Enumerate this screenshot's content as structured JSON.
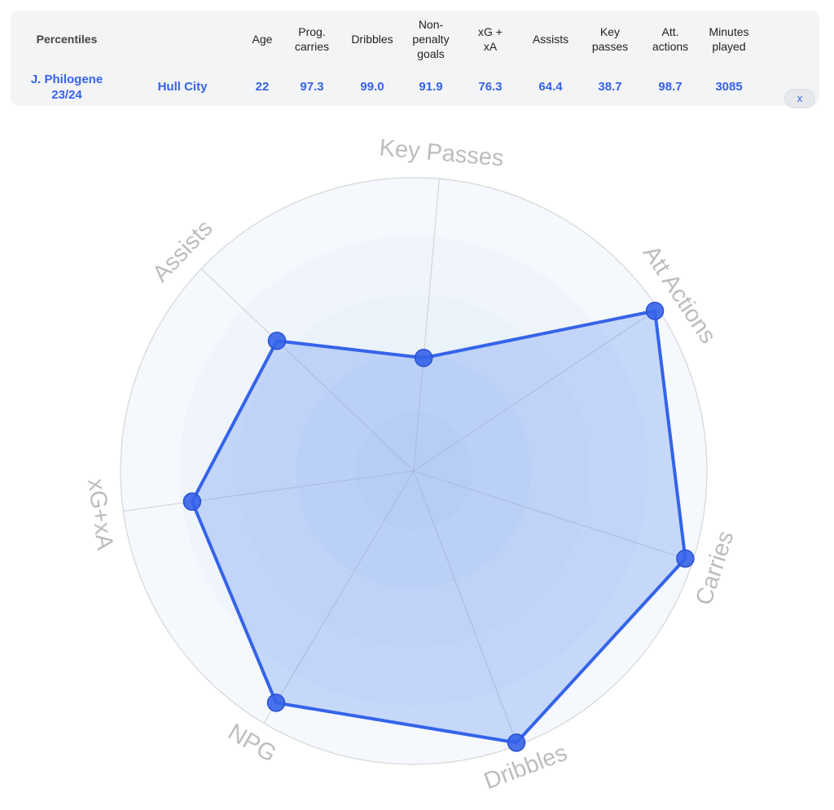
{
  "table": {
    "headers": {
      "percentiles": "Percentiles",
      "age": "Age",
      "prog_carries": "Prog.\ncarries",
      "dribbles": "Dribbles",
      "npg": "Non-\npenalty\ngoals",
      "xgxa": "xG +\nxA",
      "assists": "Assists",
      "key_passes": "Key\npasses",
      "att_actions": "Att.\nactions",
      "minutes": "Minutes\nplayed"
    },
    "row": {
      "player": "J. Philogene",
      "season": "23/24",
      "team": "Hull City",
      "age": "22",
      "prog_carries": "97.3",
      "dribbles": "99.0",
      "npg": "91.9",
      "xgxa": "76.3",
      "assists": "64.4",
      "key_passes": "38.7",
      "att_actions": "98.7",
      "minutes": "3085"
    },
    "close_label": "x"
  },
  "colors": {
    "accent": "#3563e9",
    "fill": "#5b8cf2",
    "grid": "#d6d6d6",
    "label": "#bdbdbd",
    "ring": "#e9f1fa"
  },
  "chart_data": {
    "type": "radar",
    "axes": [
      "Key Passes",
      "Att Actions",
      "Carries",
      "Dribbles",
      "NPG",
      "xG+xA",
      "Assists"
    ],
    "values": [
      38.7,
      98.7,
      97.3,
      99.0,
      91.9,
      76.3,
      64.4
    ],
    "range": [
      0,
      100
    ]
  }
}
